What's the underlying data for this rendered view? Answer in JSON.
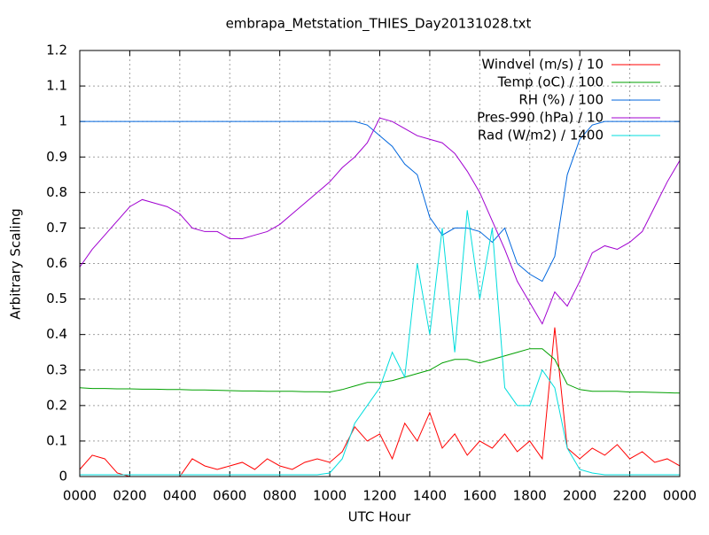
{
  "chart_data": {
    "type": "line",
    "title": "embrapa_Metstation_THIES_Day20131028.txt",
    "xlabel": "UTC Hour",
    "ylabel": "Arbitrary Scaling",
    "x": [
      0,
      0.5,
      1,
      1.5,
      2,
      2.5,
      3,
      3.5,
      4,
      4.5,
      5,
      5.5,
      6,
      6.5,
      7,
      7.5,
      8,
      8.5,
      9,
      9.5,
      10,
      10.5,
      11,
      11.5,
      12,
      12.5,
      13,
      13.5,
      14,
      14.5,
      15,
      15.5,
      16,
      16.5,
      17,
      17.5,
      18,
      18.5,
      19,
      19.5,
      20,
      20.5,
      21,
      21.5,
      22,
      22.5,
      23,
      23.5,
      24
    ],
    "xlim": [
      0,
      24
    ],
    "xticks": [
      {
        "value": 0,
        "label": "0000"
      },
      {
        "value": 2,
        "label": "0200"
      },
      {
        "value": 4,
        "label": "0400"
      },
      {
        "value": 6,
        "label": "0600"
      },
      {
        "value": 8,
        "label": "0800"
      },
      {
        "value": 10,
        "label": "1000"
      },
      {
        "value": 12,
        "label": "1200"
      },
      {
        "value": 14,
        "label": "1400"
      },
      {
        "value": 16,
        "label": "1600"
      },
      {
        "value": 18,
        "label": "1800"
      },
      {
        "value": 20,
        "label": "2000"
      },
      {
        "value": 22,
        "label": "2200"
      },
      {
        "value": 24,
        "label": "0000"
      }
    ],
    "ylim": [
      0,
      1.2
    ],
    "yticks": [
      0,
      0.1,
      0.2,
      0.3,
      0.4,
      0.5,
      0.6,
      0.7,
      0.8,
      0.9,
      1,
      1.1,
      1.2
    ],
    "grid": true,
    "legend": "top-right",
    "series": [
      {
        "name": "Windvel (m/s) / 10",
        "color": "#ff0000",
        "values": [
          0.02,
          0.06,
          0.05,
          0.01,
          0,
          0,
          0,
          0,
          0,
          0.05,
          0.03,
          0.02,
          0.03,
          0.04,
          0.02,
          0.05,
          0.03,
          0.02,
          0.04,
          0.05,
          0.04,
          0.07,
          0.14,
          0.1,
          0.12,
          0.05,
          0.15,
          0.1,
          0.18,
          0.08,
          0.12,
          0.06,
          0.1,
          0.08,
          0.12,
          0.07,
          0.1,
          0.05,
          0.42,
          0.08,
          0.05,
          0.08,
          0.06,
          0.09,
          0.05,
          0.07,
          0.04,
          0.05,
          0.03
        ]
      },
      {
        "name": "Temp (oC) / 100",
        "color": "#00a000",
        "values": [
          0.25,
          0.248,
          0.248,
          0.247,
          0.247,
          0.246,
          0.246,
          0.245,
          0.245,
          0.244,
          0.244,
          0.243,
          0.242,
          0.241,
          0.241,
          0.24,
          0.24,
          0.24,
          0.239,
          0.239,
          0.238,
          0.245,
          0.255,
          0.265,
          0.265,
          0.27,
          0.28,
          0.29,
          0.3,
          0.32,
          0.33,
          0.33,
          0.32,
          0.33,
          0.34,
          0.35,
          0.36,
          0.36,
          0.33,
          0.26,
          0.245,
          0.24,
          0.24,
          0.24,
          0.238,
          0.238,
          0.237,
          0.236,
          0.235
        ]
      },
      {
        "name": "RH (%) / 100",
        "color": "#0066dd",
        "values": [
          1,
          1,
          1,
          1,
          1,
          1,
          1,
          1,
          1,
          1,
          1,
          1,
          1,
          1,
          1,
          1,
          1,
          1,
          1,
          1,
          1,
          1,
          1,
          0.99,
          0.96,
          0.93,
          0.88,
          0.85,
          0.73,
          0.68,
          0.7,
          0.7,
          0.69,
          0.66,
          0.7,
          0.6,
          0.57,
          0.55,
          0.62,
          0.85,
          0.95,
          0.99,
          1,
          1,
          1,
          1,
          1,
          1,
          1
        ]
      },
      {
        "name": "Pres-990 (hPa) / 10",
        "color": "#a000d0",
        "values": [
          0.59,
          0.64,
          0.68,
          0.72,
          0.76,
          0.78,
          0.77,
          0.76,
          0.74,
          0.7,
          0.69,
          0.69,
          0.67,
          0.67,
          0.68,
          0.69,
          0.71,
          0.74,
          0.77,
          0.8,
          0.83,
          0.87,
          0.9,
          0.94,
          1.01,
          1,
          0.98,
          0.96,
          0.95,
          0.94,
          0.91,
          0.86,
          0.8,
          0.72,
          0.64,
          0.55,
          0.49,
          0.43,
          0.52,
          0.48,
          0.55,
          0.63,
          0.65,
          0.64,
          0.66,
          0.69,
          0.76,
          0.83,
          0.89
        ]
      },
      {
        "name": "Rad (W/m2) / 1400",
        "color": "#00dddd",
        "values": [
          0.005,
          0.005,
          0.005,
          0.005,
          0.005,
          0.005,
          0.005,
          0.005,
          0.005,
          0.005,
          0.005,
          0.005,
          0.005,
          0.005,
          0.005,
          0.005,
          0.005,
          0.005,
          0.005,
          0.005,
          0.01,
          0.05,
          0.15,
          0.2,
          0.25,
          0.35,
          0.28,
          0.6,
          0.4,
          0.7,
          0.35,
          0.75,
          0.5,
          0.7,
          0.25,
          0.2,
          0.2,
          0.3,
          0.25,
          0.08,
          0.02,
          0.01,
          0.005,
          0.005,
          0.005,
          0.005,
          0.005,
          0.005,
          0.005
        ]
      }
    ]
  }
}
